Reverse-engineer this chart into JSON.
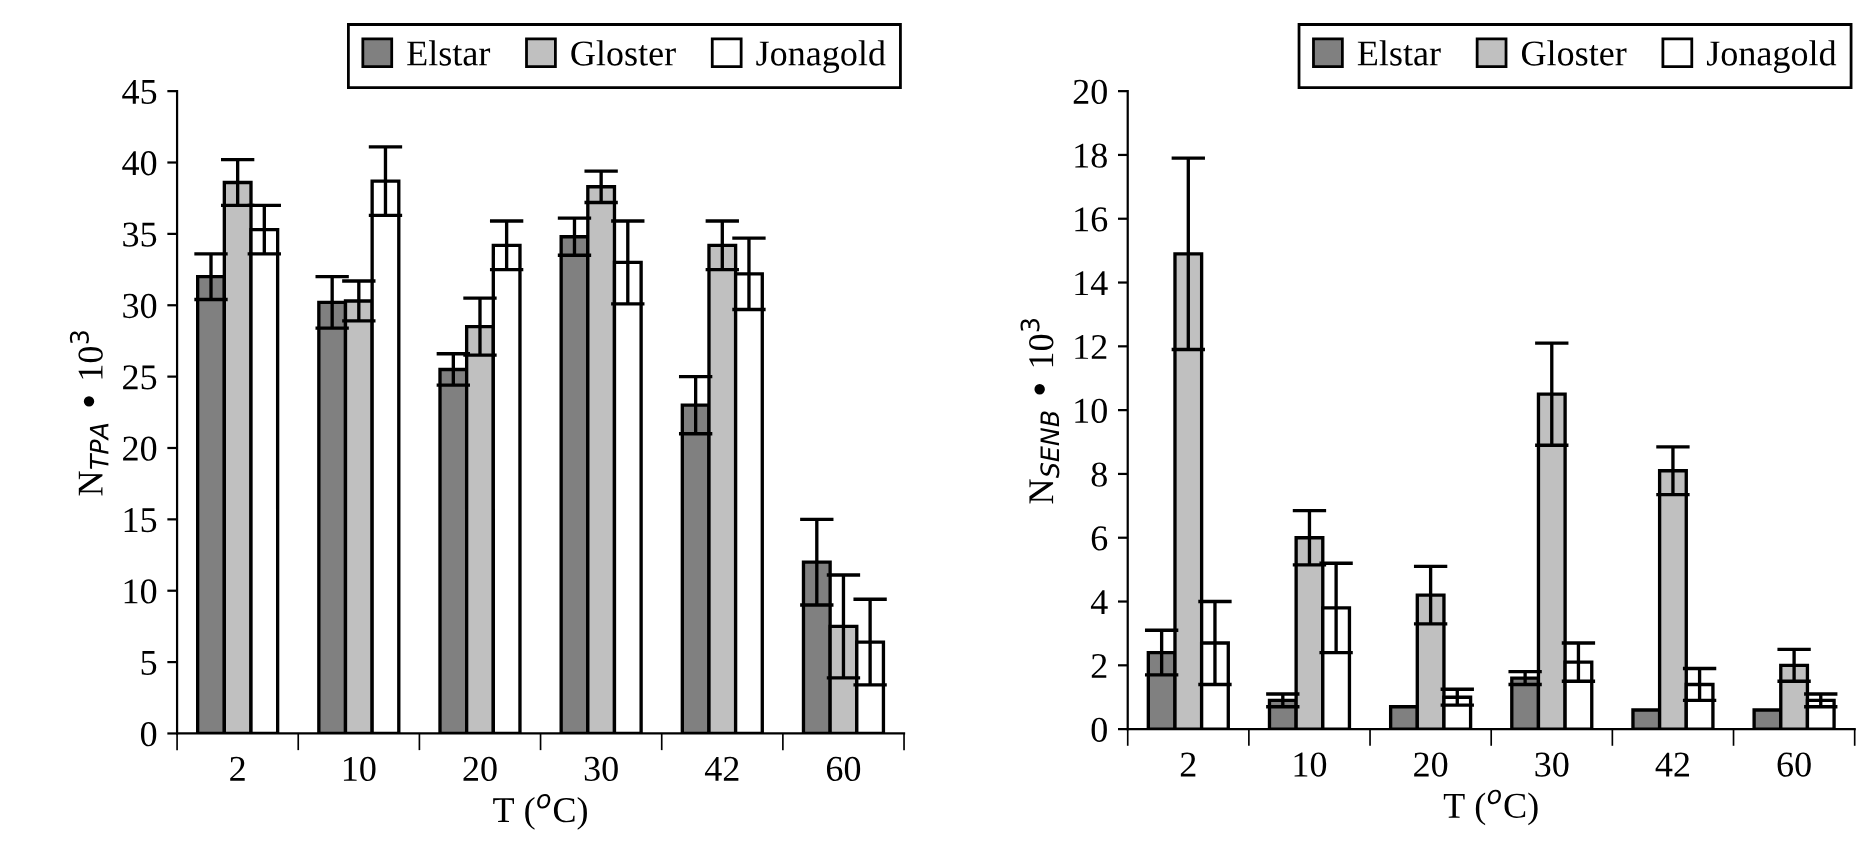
{
  "chart_data": [
    {
      "type": "bar",
      "categories": [
        "2",
        "10",
        "20",
        "30",
        "42",
        "60"
      ],
      "xlabel": "T ($^{o}$C)",
      "ylabel": "N$_{TPA}$ • 10$^{3}$",
      "ylim": [
        0,
        45
      ],
      "yticks": [
        0,
        5,
        10,
        15,
        20,
        25,
        30,
        35,
        40,
        45
      ],
      "grid": false,
      "legend": "top",
      "series": [
        {
          "name": "Elstar",
          "color": "#808080",
          "values": [
            32,
            30.2,
            25.5,
            34.8,
            23,
            12
          ],
          "errors": [
            1.6,
            1.8,
            1.1,
            1.3,
            2,
            3
          ]
        },
        {
          "name": "Gloster",
          "color": "#c0c0c0",
          "values": [
            38.6,
            30.3,
            28.5,
            38.3,
            34.2,
            7.5
          ],
          "errors": [
            1.6,
            1.4,
            2,
            1.1,
            1.7,
            3.6
          ]
        },
        {
          "name": "Jonagold",
          "color": "#ffffff",
          "values": [
            35.3,
            38.7,
            34.2,
            33,
            32.2,
            6.4
          ],
          "errors": [
            1.7,
            2.4,
            1.7,
            2.9,
            2.5,
            3
          ]
        }
      ]
    },
    {
      "type": "bar",
      "categories": [
        "2",
        "10",
        "20",
        "30",
        "42",
        "60"
      ],
      "xlabel": "T ($^{o}$C)",
      "ylabel": "N$_{SENB}$ • 10$^{3}$",
      "ylim": [
        0,
        20
      ],
      "yticks": [
        0,
        2,
        4,
        6,
        8,
        10,
        12,
        14,
        16,
        18,
        20
      ],
      "grid": false,
      "legend": "top",
      "series": [
        {
          "name": "Elstar",
          "color": "#808080",
          "values": [
            2.4,
            0.9,
            0.7,
            1.6,
            0.6,
            0.6
          ],
          "errors": [
            0.7,
            0.2,
            null,
            0.2,
            null,
            null
          ]
        },
        {
          "name": "Gloster",
          "color": "#c0c0c0",
          "values": [
            14.9,
            6,
            4.2,
            10.5,
            8.1,
            2.0
          ],
          "errors": [
            3,
            0.85,
            0.9,
            1.6,
            0.75,
            0.5
          ]
        },
        {
          "name": "Jonagold",
          "color": "#ffffff",
          "values": [
            2.7,
            3.8,
            1.0,
            2.1,
            1.4,
            0.9
          ],
          "errors": [
            1.3,
            1.4,
            0.25,
            0.6,
            0.5,
            0.2
          ]
        }
      ]
    }
  ]
}
